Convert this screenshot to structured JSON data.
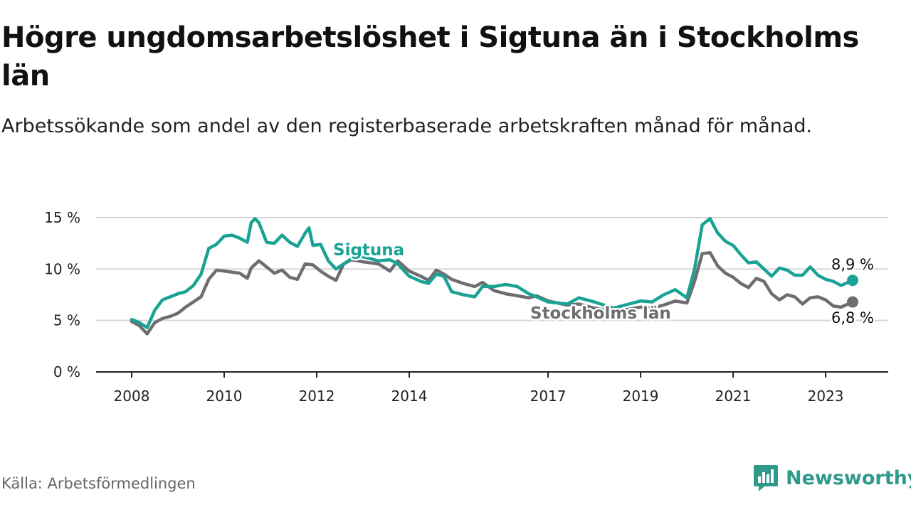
{
  "header": {
    "title": "Högre ungdomsarbetslöshet i Sigtuna än i Stockholms län",
    "subtitle": "Arbetssökande som andel av den registerbaserade arbetskraften månad för månad."
  },
  "footer": {
    "source": "Källa: Arbetsförmedlingen",
    "brand": "Newsworthy"
  },
  "colors": {
    "sigtuna": "#1aa394",
    "stockholm": "#6e6e72",
    "brand": "#2e9a8a",
    "grid": "#d6d6d6",
    "axis": "#222222"
  },
  "icons": {
    "brand_logo": "bar-chart-speech-bubble-icon"
  },
  "chart_data": {
    "type": "line",
    "title": "Högre ungdomsarbetslöshet i Sigtuna än i Stockholms län",
    "subtitle": "Arbetssökande som andel av den registerbaserade arbetskraften månad för månad.",
    "xlabel": "",
    "ylabel": "",
    "ylim": [
      0,
      15
    ],
    "yticks": [
      0,
      5,
      10,
      15
    ],
    "ytick_labels": [
      "0 %",
      "5 %",
      "10 %",
      "15 %"
    ],
    "xlim": [
      "2008-01",
      "2023-08"
    ],
    "xticks": [
      "2008-01",
      "2010-01",
      "2012-01",
      "2014-01",
      "2017-01",
      "2019-01",
      "2021-01",
      "2023-01"
    ],
    "xtick_labels": [
      "2008",
      "2010",
      "2012",
      "2014",
      "2017",
      "2019",
      "2021",
      "2023"
    ],
    "grid": "horizontal",
    "legend": "inline labels",
    "series": [
      {
        "name": "Sigtuna",
        "end_label": "8,9 %",
        "points": [
          [
            "2008-01",
            5.1
          ],
          [
            "2008-03",
            4.8
          ],
          [
            "2008-05",
            4.3
          ],
          [
            "2008-07",
            6.0
          ],
          [
            "2008-09",
            7.0
          ],
          [
            "2008-11",
            7.3
          ],
          [
            "2009-01",
            7.6
          ],
          [
            "2009-03",
            7.8
          ],
          [
            "2009-05",
            8.4
          ],
          [
            "2009-07",
            9.5
          ],
          [
            "2009-09",
            12.0
          ],
          [
            "2009-11",
            12.4
          ],
          [
            "2010-01",
            13.2
          ],
          [
            "2010-03",
            13.3
          ],
          [
            "2010-05",
            13.0
          ],
          [
            "2010-07",
            12.6
          ],
          [
            "2010-08",
            14.5
          ],
          [
            "2010-09",
            14.9
          ],
          [
            "2010-10",
            14.5
          ],
          [
            "2010-12",
            12.6
          ],
          [
            "2011-02",
            12.5
          ],
          [
            "2011-04",
            13.3
          ],
          [
            "2011-06",
            12.6
          ],
          [
            "2011-08",
            12.2
          ],
          [
            "2011-10",
            13.5
          ],
          [
            "2011-11",
            14.0
          ],
          [
            "2011-12",
            12.3
          ],
          [
            "2012-02",
            12.4
          ],
          [
            "2012-04",
            10.8
          ],
          [
            "2012-06",
            10.0
          ],
          [
            "2012-08",
            10.5
          ],
          [
            "2012-10",
            11.0
          ],
          [
            "2013-01",
            11.2
          ],
          [
            "2013-05",
            10.8
          ],
          [
            "2013-08",
            10.9
          ],
          [
            "2013-10",
            10.5
          ],
          [
            "2014-01",
            9.3
          ],
          [
            "2014-04",
            8.8
          ],
          [
            "2014-06",
            8.6
          ],
          [
            "2014-08",
            9.5
          ],
          [
            "2014-10",
            9.3
          ],
          [
            "2014-12",
            7.8
          ],
          [
            "2015-03",
            7.5
          ],
          [
            "2015-06",
            7.3
          ],
          [
            "2015-08",
            8.3
          ],
          [
            "2015-11",
            8.3
          ],
          [
            "2016-02",
            8.5
          ],
          [
            "2016-05",
            8.3
          ],
          [
            "2016-08",
            7.6
          ],
          [
            "2016-10",
            7.3
          ],
          [
            "2017-01",
            6.8
          ],
          [
            "2017-06",
            6.6
          ],
          [
            "2017-09",
            7.2
          ],
          [
            "2018-01",
            6.8
          ],
          [
            "2018-06",
            6.2
          ],
          [
            "2018-10",
            6.6
          ],
          [
            "2019-01",
            6.9
          ],
          [
            "2019-04",
            6.8
          ],
          [
            "2019-07",
            7.5
          ],
          [
            "2019-10",
            8.0
          ],
          [
            "2020-01",
            7.2
          ],
          [
            "2020-03",
            10.0
          ],
          [
            "2020-05",
            14.3
          ],
          [
            "2020-07",
            14.9
          ],
          [
            "2020-09",
            13.5
          ],
          [
            "2020-11",
            12.7
          ],
          [
            "2021-01",
            12.3
          ],
          [
            "2021-03",
            11.4
          ],
          [
            "2021-05",
            10.6
          ],
          [
            "2021-07",
            10.7
          ],
          [
            "2021-09",
            10.0
          ],
          [
            "2021-11",
            9.3
          ],
          [
            "2022-01",
            10.1
          ],
          [
            "2022-03",
            9.9
          ],
          [
            "2022-05",
            9.4
          ],
          [
            "2022-07",
            9.4
          ],
          [
            "2022-09",
            10.2
          ],
          [
            "2022-11",
            9.4
          ],
          [
            "2023-01",
            9.0
          ],
          [
            "2023-03",
            8.8
          ],
          [
            "2023-05",
            8.4
          ],
          [
            "2023-08",
            8.9
          ]
        ]
      },
      {
        "name": "Stockholms län",
        "end_label": "6,8 %",
        "points": [
          [
            "2008-01",
            4.9
          ],
          [
            "2008-03",
            4.5
          ],
          [
            "2008-05",
            3.7
          ],
          [
            "2008-07",
            4.8
          ],
          [
            "2008-09",
            5.2
          ],
          [
            "2008-11",
            5.4
          ],
          [
            "2009-01",
            5.7
          ],
          [
            "2009-03",
            6.3
          ],
          [
            "2009-05",
            6.8
          ],
          [
            "2009-07",
            7.3
          ],
          [
            "2009-09",
            9.0
          ],
          [
            "2009-11",
            9.9
          ],
          [
            "2010-01",
            9.8
          ],
          [
            "2010-03",
            9.7
          ],
          [
            "2010-05",
            9.6
          ],
          [
            "2010-07",
            9.1
          ],
          [
            "2010-08",
            10.1
          ],
          [
            "2010-10",
            10.8
          ],
          [
            "2010-12",
            10.2
          ],
          [
            "2011-02",
            9.6
          ],
          [
            "2011-04",
            9.9
          ],
          [
            "2011-06",
            9.2
          ],
          [
            "2011-08",
            9.0
          ],
          [
            "2011-10",
            10.5
          ],
          [
            "2011-12",
            10.4
          ],
          [
            "2012-02",
            9.8
          ],
          [
            "2012-04",
            9.3
          ],
          [
            "2012-06",
            8.9
          ],
          [
            "2012-08",
            10.5
          ],
          [
            "2012-10",
            10.9
          ],
          [
            "2013-01",
            10.7
          ],
          [
            "2013-05",
            10.5
          ],
          [
            "2013-08",
            9.8
          ],
          [
            "2013-10",
            10.8
          ],
          [
            "2014-01",
            9.8
          ],
          [
            "2014-04",
            9.3
          ],
          [
            "2014-06",
            8.9
          ],
          [
            "2014-08",
            9.9
          ],
          [
            "2014-10",
            9.5
          ],
          [
            "2014-12",
            9.0
          ],
          [
            "2015-03",
            8.6
          ],
          [
            "2015-06",
            8.3
          ],
          [
            "2015-08",
            8.7
          ],
          [
            "2015-11",
            7.9
          ],
          [
            "2016-02",
            7.6
          ],
          [
            "2016-05",
            7.4
          ],
          [
            "2016-08",
            7.2
          ],
          [
            "2016-10",
            7.4
          ],
          [
            "2017-01",
            6.9
          ],
          [
            "2017-06",
            6.5
          ],
          [
            "2017-09",
            6.6
          ],
          [
            "2018-01",
            6.2
          ],
          [
            "2018-06",
            5.9
          ],
          [
            "2018-10",
            6.1
          ],
          [
            "2019-01",
            6.3
          ],
          [
            "2019-04",
            6.2
          ],
          [
            "2019-07",
            6.5
          ],
          [
            "2019-10",
            6.9
          ],
          [
            "2020-01",
            6.7
          ],
          [
            "2020-03",
            8.8
          ],
          [
            "2020-05",
            11.5
          ],
          [
            "2020-07",
            11.6
          ],
          [
            "2020-09",
            10.3
          ],
          [
            "2020-11",
            9.6
          ],
          [
            "2021-01",
            9.2
          ],
          [
            "2021-03",
            8.6
          ],
          [
            "2021-05",
            8.2
          ],
          [
            "2021-07",
            9.1
          ],
          [
            "2021-09",
            8.8
          ],
          [
            "2021-11",
            7.6
          ],
          [
            "2022-01",
            7.0
          ],
          [
            "2022-03",
            7.5
          ],
          [
            "2022-05",
            7.3
          ],
          [
            "2022-07",
            6.6
          ],
          [
            "2022-09",
            7.2
          ],
          [
            "2022-11",
            7.3
          ],
          [
            "2023-01",
            7.0
          ],
          [
            "2023-03",
            6.4
          ],
          [
            "2023-05",
            6.3
          ],
          [
            "2023-08",
            6.8
          ]
        ]
      }
    ]
  }
}
